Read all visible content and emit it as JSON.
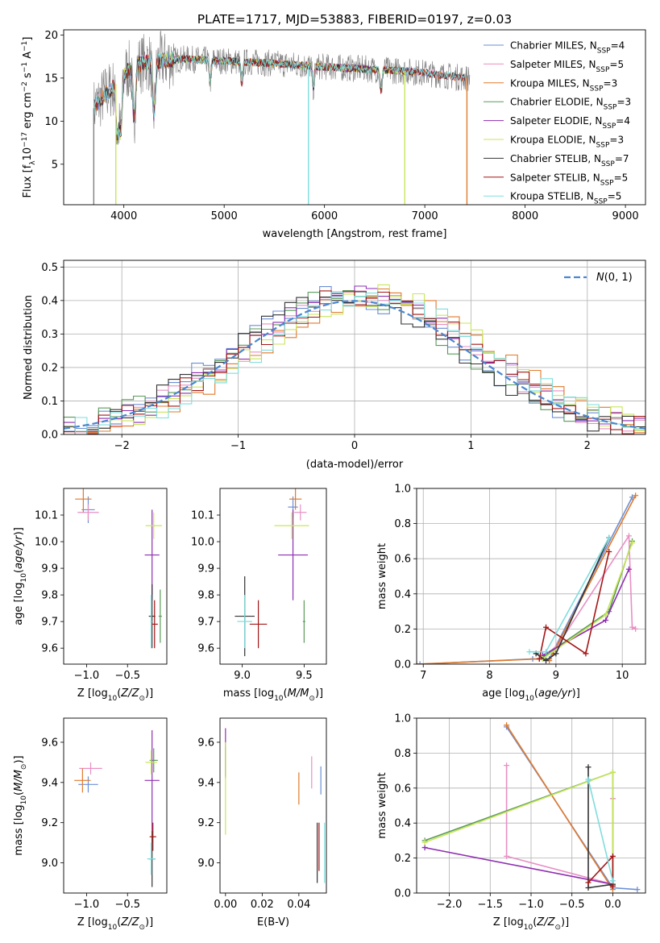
{
  "figure_title": "PLATE=1717, MJD=53883, FIBERID=0197, z=0.03",
  "colors": {
    "chabrier_miles": "#6b8fd6",
    "salpeter_miles": "#e88fc3",
    "kroupa_miles": "#e07a2c",
    "chabrier_elodie": "#5a9a5a",
    "salpeter_elodie": "#8e2fb0",
    "kroupa_elodie": "#c8e65a",
    "chabrier_stelib": "#333333",
    "salpeter_stelib": "#a31616",
    "kroupa_stelib": "#7fdddd",
    "data_grey": "#808080",
    "normal_curve": "#4a86d0"
  },
  "chart_data": [
    {
      "id": "spectrum",
      "type": "line",
      "title": "PLATE=1717, MJD=53883, FIBERID=0197, z=0.03",
      "xlabel": "wavelength [Angstrom, rest frame]",
      "ylabel": "Flux [f_λ 10^-17 erg cm^-2 s^-1 A^-1]",
      "xlim": [
        3400,
        9200
      ],
      "ylim": [
        0.3,
        20.6
      ],
      "xticks": [
        4000,
        5000,
        6000,
        7000,
        8000,
        9000
      ],
      "yticks": [
        5,
        10,
        15,
        20
      ],
      "legend_position": "top-right",
      "legend": [
        {
          "label": "Chabrier MILES, N",
          "sub": "SSP",
          "eq": "=4",
          "color_key": "chabrier_miles"
        },
        {
          "label": "Salpeter MILES, N",
          "sub": "SSP",
          "eq": "=5",
          "color_key": "salpeter_miles"
        },
        {
          "label": "Kroupa MILES, N",
          "sub": "SSP",
          "eq": "=3",
          "color_key": "kroupa_miles"
        },
        {
          "label": "Chabrier ELODIE, N",
          "sub": "SSP",
          "eq": "=3",
          "color_key": "chabrier_elodie"
        },
        {
          "label": "Salpeter ELODIE, N",
          "sub": "SSP",
          "eq": "=4",
          "color_key": "salpeter_elodie"
        },
        {
          "label": "Kroupa ELODIE, N",
          "sub": "SSP",
          "eq": "=3",
          "color_key": "kroupa_elodie"
        },
        {
          "label": "Chabrier STELIB, N",
          "sub": "SSP",
          "eq": "=7",
          "color_key": "chabrier_stelib"
        },
        {
          "label": "Salpeter STELIB, N",
          "sub": "SSP",
          "eq": "=5",
          "color_key": "salpeter_stelib"
        },
        {
          "label": "Kroupa STELIB, N",
          "sub": "SSP",
          "eq": "=5",
          "color_key": "kroupa_stelib"
        }
      ],
      "continuum": {
        "x": [
          3700,
          3800,
          3900,
          4000,
          4100,
          4200,
          4400,
          4600,
          5000,
          5500,
          6000,
          6500,
          6800,
          7000,
          7200,
          7400
        ],
        "y": [
          11.5,
          13.0,
          14.0,
          15.5,
          16.3,
          16.8,
          17.0,
          17.2,
          17.0,
          16.7,
          16.3,
          16.0,
          15.8,
          15.6,
          15.3,
          15.0
        ]
      },
      "grey_data_range": [
        3700,
        7450
      ],
      "model_ranges": {
        "miles": [
          3700,
          7400
        ],
        "elodie": [
          3900,
          6800
        ],
        "stelib": [
          3700,
          7400
        ]
      },
      "absorption_features": [
        3934,
        3969,
        4102,
        4300,
        4861,
        5175,
        5890,
        6563
      ],
      "dropouts": [
        {
          "x": 3700,
          "color_key": "data_grey"
        },
        {
          "x": 3920,
          "color_key": "kroupa_elodie"
        },
        {
          "x": 5840,
          "color_key": "kroupa_stelib"
        },
        {
          "x": 6800,
          "color_key": "kroupa_elodie"
        },
        {
          "x": 7420,
          "color_key": "kroupa_miles"
        }
      ]
    },
    {
      "id": "residuals",
      "type": "line",
      "xlabel": "(data-model)/error",
      "ylabel": "Normed distribution",
      "xlim": [
        -2.5,
        2.5
      ],
      "ylim": [
        0.0,
        0.52
      ],
      "xticks": [
        -2,
        -1,
        0,
        1,
        2
      ],
      "yticks": [
        0.0,
        0.1,
        0.2,
        0.3,
        0.4,
        0.5
      ],
      "grid": true,
      "legend_position": "top-right",
      "legend_label": "N(0, 1)",
      "bin_width": 0.1,
      "normal": {
        "mu": 0,
        "sigma": 1
      }
    },
    {
      "id": "age_vs_z",
      "type": "scatter",
      "xlabel": "Z [log10(Z/Z⊙)]",
      "ylabel": "age [log10(age/yr)]",
      "xlim": [
        -1.28,
        -0.02
      ],
      "ylim": [
        9.54,
        10.2
      ],
      "xticks": [
        -1.0,
        -0.5
      ],
      "yticks": [
        9.6,
        9.7,
        9.8,
        9.9,
        10.0,
        10.1
      ],
      "points": [
        {
          "model": "chabrier_miles",
          "x": -0.98,
          "y": 10.12,
          "xerr": 0.08,
          "yerr": 0.05
        },
        {
          "model": "salpeter_miles",
          "x": -0.98,
          "y": 10.11,
          "xerr": 0.13,
          "yerr": 0.03
        },
        {
          "model": "kroupa_miles",
          "x": -1.04,
          "y": 10.16,
          "xerr": 0.1,
          "yerr": 0.05
        },
        {
          "model": "chabrier_elodie",
          "x": -0.1,
          "y": 9.72,
          "xerr": 0.02,
          "yerr": 0.1
        },
        {
          "model": "salpeter_elodie",
          "x": -0.2,
          "y": 9.95,
          "xerr": 0.09,
          "yerr": 0.17
        },
        {
          "model": "kroupa_elodie",
          "x": -0.18,
          "y": 10.06,
          "xerr": 0.1,
          "yerr": 0.05
        },
        {
          "model": "chabrier_stelib",
          "x": -0.2,
          "y": 9.72,
          "xerr": 0.04,
          "yerr": 0.12
        },
        {
          "model": "salpeter_stelib",
          "x": -0.17,
          "y": 9.69,
          "xerr": 0.04,
          "yerr": 0.09
        },
        {
          "model": "kroupa_stelib",
          "x": -0.21,
          "y": 9.7,
          "xerr": 0.01,
          "yerr": 0.1
        }
      ]
    },
    {
      "id": "age_vs_mass",
      "type": "scatter",
      "xlabel": "mass [log10(M/M⊙)]",
      "ylabel": "",
      "xlim": [
        8.82,
        9.68
      ],
      "ylim": [
        9.54,
        10.2
      ],
      "xticks": [
        9.0,
        9.5
      ],
      "yticks": [
        9.6,
        9.7,
        9.8,
        9.9,
        10.0,
        10.1
      ],
      "points": [
        {
          "model": "chabrier_miles",
          "x": 9.41,
          "y": 10.13,
          "xerr": 0.04,
          "yerr": 0.04
        },
        {
          "model": "salpeter_miles",
          "x": 9.47,
          "y": 10.11,
          "xerr": 0.05,
          "yerr": 0.03
        },
        {
          "model": "kroupa_miles",
          "x": 9.43,
          "y": 10.16,
          "xerr": 0.05,
          "yerr": 0.04
        },
        {
          "model": "chabrier_elodie",
          "x": 9.5,
          "y": 9.7,
          "xerr": 0.01,
          "yerr": 0.08
        },
        {
          "model": "salpeter_elodie",
          "x": 9.41,
          "y": 9.95,
          "xerr": 0.12,
          "yerr": 0.17
        },
        {
          "model": "kroupa_elodie",
          "x": 9.4,
          "y": 10.06,
          "xerr": 0.14,
          "yerr": 0.05
        },
        {
          "model": "chabrier_stelib",
          "x": 9.02,
          "y": 9.72,
          "xerr": 0.08,
          "yerr": 0.15
        },
        {
          "model": "salpeter_stelib",
          "x": 9.13,
          "y": 9.69,
          "xerr": 0.07,
          "yerr": 0.09
        },
        {
          "model": "kroupa_stelib",
          "x": 9.02,
          "y": 9.7,
          "xerr": 0.06,
          "yerr": 0.1
        }
      ]
    },
    {
      "id": "weights_vs_age",
      "type": "line",
      "xlabel": "age [log10(age/yr)]",
      "ylabel": "mass weight",
      "xlim": [
        6.9,
        10.35
      ],
      "ylim": [
        0.0,
        1.0
      ],
      "xticks": [
        7,
        8,
        9,
        10
      ],
      "yticks": [
        0.0,
        0.2,
        0.4,
        0.6,
        0.8,
        1.0
      ],
      "grid": true,
      "series": [
        {
          "model": "chabrier_miles",
          "x": [
            6.95,
            8.65,
            8.9,
            10.15
          ],
          "y": [
            0.0,
            0.03,
            0.03,
            0.95
          ]
        },
        {
          "model": "salpeter_miles",
          "x": [
            8.8,
            9.05,
            10.1,
            10.15,
            10.2
          ],
          "y": [
            0.03,
            0.12,
            0.73,
            0.21,
            0.2
          ]
        },
        {
          "model": "kroupa_miles",
          "x": [
            6.9,
            8.75,
            8.9,
            10.2
          ],
          "y": [
            0.0,
            0.03,
            0.02,
            0.96
          ]
        },
        {
          "model": "chabrier_elodie",
          "x": [
            8.8,
            9.8,
            10.15
          ],
          "y": [
            0.04,
            0.3,
            0.7
          ]
        },
        {
          "model": "salpeter_elodie",
          "x": [
            8.8,
            9.75,
            10.1
          ],
          "y": [
            0.05,
            0.25,
            0.54
          ]
        },
        {
          "model": "kroupa_elodie",
          "x": [
            8.8,
            9.75,
            10.15
          ],
          "y": [
            0.03,
            0.28,
            0.69
          ]
        },
        {
          "model": "chabrier_stelib",
          "x": [
            8.7,
            8.85,
            9.0,
            9.8
          ],
          "y": [
            0.06,
            0.02,
            0.06,
            0.72
          ]
        },
        {
          "model": "salpeter_stelib",
          "x": [
            8.75,
            8.85,
            9.45,
            9.8
          ],
          "y": [
            0.03,
            0.21,
            0.06,
            0.64
          ]
        },
        {
          "model": "kroupa_stelib",
          "x": [
            8.6,
            8.85,
            9.8
          ],
          "y": [
            0.07,
            0.07,
            0.72
          ]
        }
      ]
    },
    {
      "id": "mass_vs_z",
      "type": "scatter",
      "xlabel": "Z [log10(Z/Z⊙)]",
      "ylabel": "mass [log10(M/M⊙)]",
      "xlim": [
        -1.28,
        -0.02
      ],
      "ylim": [
        8.85,
        9.72
      ],
      "xticks": [
        -1.0,
        -0.5
      ],
      "yticks": [
        9.0,
        9.2,
        9.4,
        9.6
      ],
      "points": [
        {
          "model": "chabrier_miles",
          "x": -0.98,
          "y": 9.39,
          "xerr": 0.12,
          "yerr": 0.04
        },
        {
          "model": "salpeter_miles",
          "x": -0.95,
          "y": 9.47,
          "xerr": 0.14,
          "yerr": 0.03
        },
        {
          "model": "kroupa_miles",
          "x": -1.05,
          "y": 9.41,
          "xerr": 0.1,
          "yerr": 0.06
        },
        {
          "model": "chabrier_elodie",
          "x": -0.18,
          "y": 9.51,
          "xerr": 0.05,
          "yerr": 0.06
        },
        {
          "model": "salpeter_elodie",
          "x": -0.2,
          "y": 9.41,
          "xerr": 0.09,
          "yerr": 0.25
        },
        {
          "model": "kroupa_elodie",
          "x": -0.21,
          "y": 9.5,
          "xerr": 0.07,
          "yerr": 0.06
        },
        {
          "model": "chabrier_stelib",
          "x": -0.2,
          "y": 9.02,
          "xerr": 0.04,
          "yerr": 0.14
        },
        {
          "model": "salpeter_stelib",
          "x": -0.19,
          "y": 9.13,
          "xerr": 0.04,
          "yerr": 0.07
        },
        {
          "model": "kroupa_stelib",
          "x": -0.21,
          "y": 9.02,
          "xerr": 0.05,
          "yerr": 0.08
        }
      ]
    },
    {
      "id": "mass_vs_ebv",
      "type": "scatter",
      "xlabel": "E(B-V)",
      "ylabel": "",
      "xlim": [
        -0.003,
        0.055
      ],
      "ylim": [
        8.85,
        9.72
      ],
      "xticks": [
        0.0,
        0.02,
        0.04
      ],
      "yticks": [
        9.0,
        9.2,
        9.4,
        9.6
      ],
      "points": [
        {
          "model": "chabrier_miles",
          "x": 0.052,
          "y": 9.41,
          "xerr": 0.0,
          "yerr": 0.07
        },
        {
          "model": "salpeter_miles",
          "x": 0.047,
          "y": 9.45,
          "xerr": 0.0,
          "yerr": 0.08
        },
        {
          "model": "kroupa_miles",
          "x": 0.04,
          "y": 9.37,
          "xerr": 0.0,
          "yerr": 0.08
        },
        {
          "model": "chabrier_elodie",
          "x": 0.0,
          "y": 9.5,
          "xerr": 0.0,
          "yerr": 0.08
        },
        {
          "model": "salpeter_elodie",
          "x": 0.0,
          "y": 9.55,
          "xerr": 0.0,
          "yerr": 0.12
        },
        {
          "model": "kroupa_elodie",
          "x": 0.0,
          "y": 9.37,
          "xerr": 0.0,
          "yerr": 0.23
        },
        {
          "model": "chabrier_stelib",
          "x": 0.05,
          "y": 9.05,
          "xerr": 0.0,
          "yerr": 0.15
        },
        {
          "model": "salpeter_stelib",
          "x": 0.051,
          "y": 9.08,
          "xerr": 0.0,
          "yerr": 0.12
        },
        {
          "model": "kroupa_stelib",
          "x": 0.054,
          "y": 9.05,
          "xerr": 0.0,
          "yerr": 0.15
        }
      ]
    },
    {
      "id": "weights_vs_z",
      "type": "line",
      "xlabel": "Z [log10(Z/Z⊙)]",
      "ylabel": "mass weight",
      "xlim": [
        -2.4,
        0.4
      ],
      "ylim": [
        0.0,
        1.0
      ],
      "xticks": [
        -2.0,
        -1.5,
        -1.0,
        -0.5,
        0.0
      ],
      "yticks": [
        0.0,
        0.2,
        0.4,
        0.6,
        0.8,
        1.0
      ],
      "grid": true,
      "series": [
        {
          "model": "chabrier_miles",
          "x": [
            -1.3,
            0.0,
            0.3
          ],
          "y": [
            0.95,
            0.03,
            0.02
          ]
        },
        {
          "model": "salpeter_miles",
          "x": [
            -1.3,
            -1.3,
            0.0,
            0.0
          ],
          "y": [
            0.73,
            0.21,
            0.05,
            0.54
          ]
        },
        {
          "model": "kroupa_miles",
          "x": [
            -1.3,
            0.0
          ],
          "y": [
            0.96,
            0.02
          ]
        },
        {
          "model": "chabrier_elodie",
          "x": [
            -2.3,
            0.0,
            0.0
          ],
          "y": [
            0.3,
            0.69,
            0.04
          ]
        },
        {
          "model": "salpeter_elodie",
          "x": [
            -2.3,
            0.0
          ],
          "y": [
            0.26,
            0.05
          ]
        },
        {
          "model": "kroupa_elodie",
          "x": [
            -2.3,
            0.0,
            0.0
          ],
          "y": [
            0.29,
            0.69,
            0.05
          ]
        },
        {
          "model": "chabrier_stelib",
          "x": [
            -0.3,
            -0.3,
            0.0
          ],
          "y": [
            0.72,
            0.03,
            0.05
          ]
        },
        {
          "model": "salpeter_stelib",
          "x": [
            -0.3,
            0.0,
            0.0
          ],
          "y": [
            0.06,
            0.21,
            0.04
          ]
        },
        {
          "model": "kroupa_stelib",
          "x": [
            -0.3,
            -0.3,
            0.0
          ],
          "y": [
            0.64,
            0.65,
            0.07
          ]
        }
      ]
    }
  ]
}
